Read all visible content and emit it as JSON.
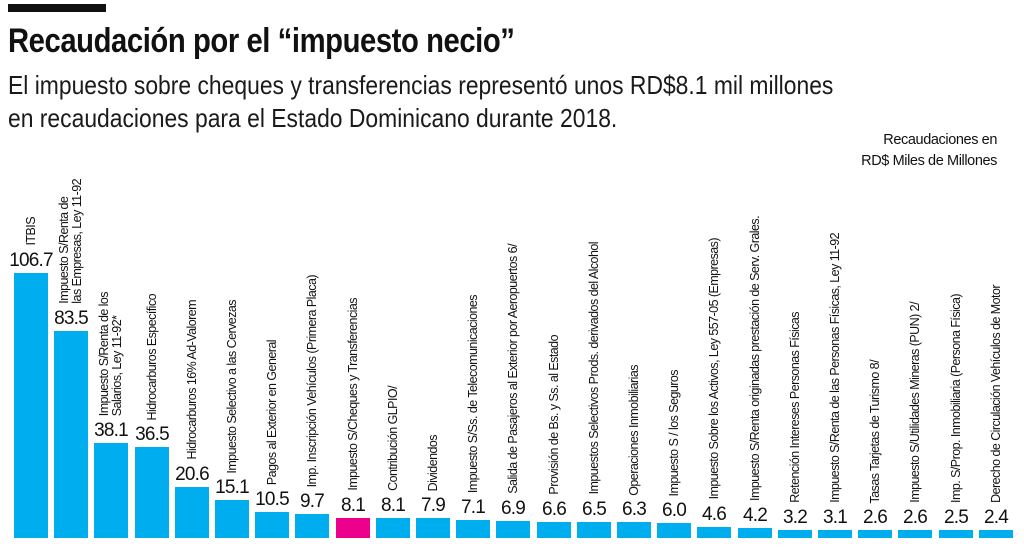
{
  "header": {
    "title": "Recaudación por el “impuesto necio”",
    "subtitle_line1": "El impuesto sobre cheques y transferencias representó unos RD$8.1 mil millones",
    "subtitle_line2": "en recaudaciones para el Estado Dominicano durante 2018.",
    "units_line1": "Recaudaciones en",
    "units_line2": "RD$ Miles de Millones"
  },
  "colors": {
    "bar": "#00aeef",
    "highlight": "#ec008c"
  },
  "chart_data": {
    "type": "bar",
    "title": "Recaudación por el “impuesto necio”",
    "ylabel": "Recaudaciones en RD$ Miles de Millones",
    "grid": false,
    "highlight_index": 8,
    "categories": [
      "ITBIS",
      "Impuesto S/Renta de\nlas Empresas, Ley 11-92",
      "Impuesto S/Renta de los\nSalarios, Ley 11-92*",
      "Hidrocarburos Específico",
      "Hidrocarburos 16% Ad-Valorem",
      "Impuesto Selectivo a las Cervezas",
      "Pagos al Exterior en General",
      "Imp. Inscripción Vehículos (Primera Placa)",
      "Impuesto S/Cheques y Transferencias",
      "Contribución GLPIO/",
      "Dividendos",
      "Impuesto S/Ss. de Telecomunicaciones",
      "Salida de Pasajeros al Exterior por Aeropuertos 6/",
      "Provisión de Bs. y Ss. al Estado",
      "Impuestos Selectivos Prods. derivados del Alcohol",
      "Operaciones Inmobiliarias",
      "Impuesto S / los Seguros",
      "Impuesto Sobre los Activos, Ley 557-05 (Empresas)",
      "Impuesto S/Renta originadas prestación de Serv. Grales.",
      "Retención Intereses Personas Físicas",
      "Impuesto S/Renta de las Personas Físicas, Ley 11-92",
      "Tasas Tarjetas de Turismo 8/",
      "Impuesto S/Utilidades Mineras (PUN) 2/",
      "Imp. S/Prop. Inmobiliaria (Persona Física)",
      "Derecho de Circulación Vehículos de Motor"
    ],
    "values": [
      106.7,
      83.5,
      38.1,
      36.5,
      20.6,
      15.1,
      10.5,
      9.7,
      8.1,
      8.1,
      7.9,
      7.1,
      6.9,
      6.6,
      6.5,
      6.3,
      6.0,
      4.6,
      4.2,
      3.2,
      3.1,
      2.6,
      2.6,
      2.5,
      2.4
    ],
    "value_labels": [
      "106.7",
      "83.5",
      "38.1",
      "36.5",
      "20.6",
      "15.1",
      "10.5",
      "9.7",
      "8.1",
      "8.1",
      "7.9",
      "7.1",
      "6.9",
      "6.6",
      "6.5",
      "6.3",
      "6.0",
      "4.6",
      "4.2",
      "3.2",
      "3.1",
      "2.6",
      "2.6",
      "2.5",
      "2.4"
    ]
  }
}
